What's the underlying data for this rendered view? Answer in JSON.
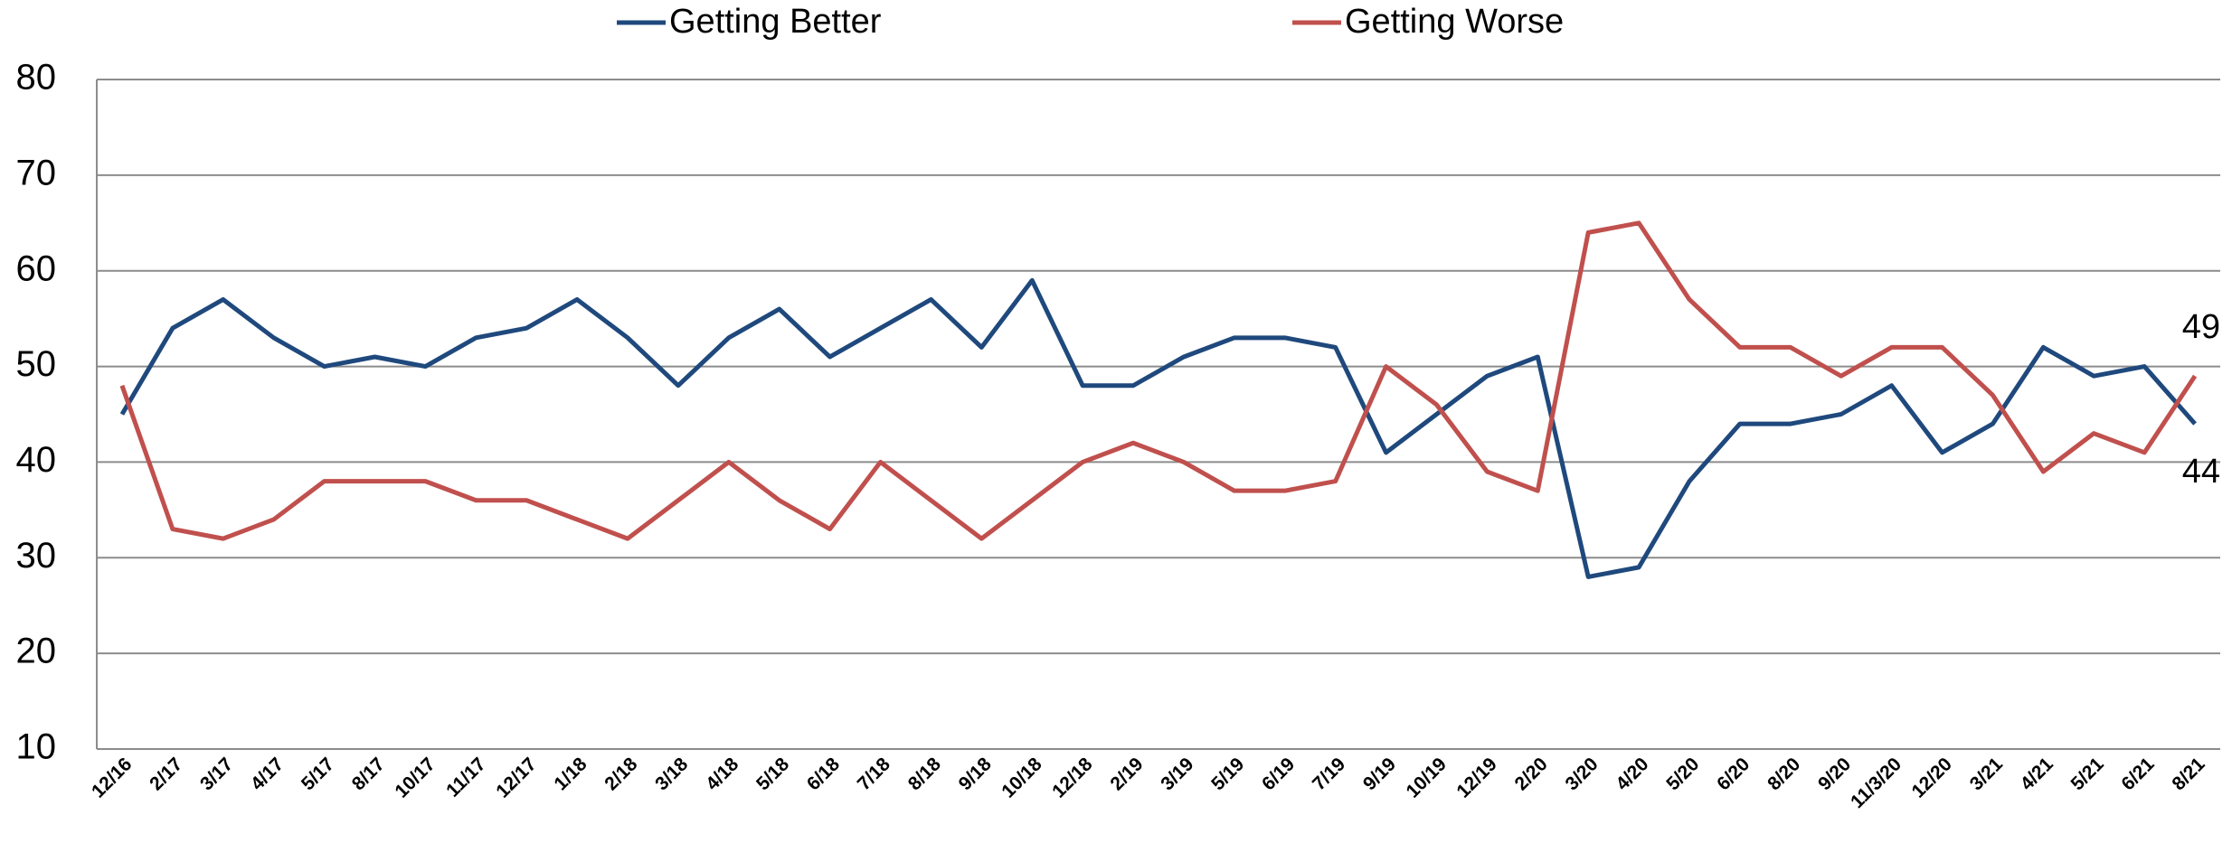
{
  "chart_data": {
    "type": "line",
    "categories": [
      "12/16",
      "2/17",
      "3/17",
      "4/17",
      "5/17",
      "8/17",
      "10/17",
      "11/17",
      "12/17",
      "1/18",
      "2/18",
      "3/18",
      "4/18",
      "5/18",
      "6/18",
      "7/18",
      "8/18",
      "9/18",
      "10/18",
      "12/18",
      "2/19",
      "3/19",
      "5/19",
      "6/19",
      "7/19",
      "9/19",
      "10/19",
      "12/19",
      "2/20",
      "3/20",
      "4/20",
      "5/20",
      "6/20",
      "8/20",
      "9/20",
      "11/3/20",
      "12/20",
      "3/21",
      "4/21",
      "5/21",
      "6/21",
      "8/21"
    ],
    "series": [
      {
        "name": "Getting Better",
        "color": "#1f497d",
        "values": [
          45,
          54,
          57,
          53,
          50,
          51,
          50,
          53,
          54,
          57,
          53,
          48,
          53,
          56,
          51,
          54,
          57,
          52,
          59,
          48,
          48,
          51,
          53,
          53,
          52,
          41,
          45,
          49,
          51,
          28,
          29,
          38,
          44,
          44,
          45,
          48,
          41,
          44,
          52,
          49,
          50,
          44
        ]
      },
      {
        "name": "Getting Worse",
        "color": "#c0504d",
        "values": [
          48,
          33,
          32,
          34,
          38,
          38,
          38,
          36,
          36,
          34,
          32,
          36,
          40,
          36,
          33,
          40,
          36,
          32,
          36,
          40,
          42,
          40,
          37,
          37,
          38,
          50,
          46,
          39,
          37,
          64,
          65,
          57,
          52,
          52,
          49,
          52,
          52,
          47,
          39,
          43,
          41,
          49
        ]
      }
    ],
    "ylim": [
      10,
      80
    ],
    "yticks": [
      10,
      20,
      30,
      40,
      50,
      60,
      70,
      80
    ],
    "grid": true,
    "legend": "top"
  }
}
